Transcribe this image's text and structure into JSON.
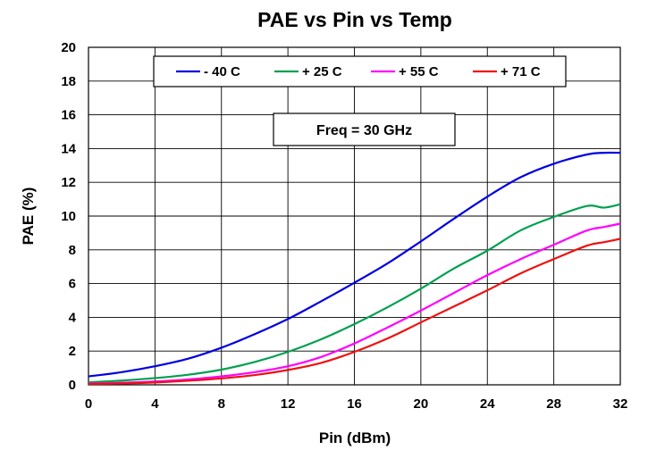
{
  "chart_data": {
    "type": "line",
    "title": "PAE vs Pin vs Temp",
    "xlabel": "Pin (dBm)",
    "ylabel": "PAE (%)",
    "xlim": [
      0,
      32
    ],
    "ylim": [
      0,
      20
    ],
    "xticks": [
      "0",
      "4",
      "8",
      "12",
      "16",
      "20",
      "24",
      "28",
      "32"
    ],
    "yticks": [
      "0",
      "2",
      "4",
      "6",
      "8",
      "10",
      "12",
      "14",
      "16",
      "18",
      "20"
    ],
    "grid": true,
    "legend_position": "top",
    "annotation": "Freq = 30 GHz",
    "x": [
      0,
      2,
      4,
      6,
      8,
      10,
      12,
      14,
      16,
      18,
      20,
      22,
      24,
      26,
      28,
      30,
      31,
      32
    ],
    "series": [
      {
        "name": "- 40 C",
        "color": "#0000e0",
        "values": [
          0.5,
          0.75,
          1.1,
          1.55,
          2.2,
          3.0,
          3.9,
          4.95,
          6.05,
          7.2,
          8.5,
          9.85,
          11.15,
          12.3,
          13.1,
          13.65,
          13.75,
          13.75
        ]
      },
      {
        "name": "+ 25 C",
        "color": "#00a050",
        "values": [
          0.15,
          0.25,
          0.4,
          0.6,
          0.9,
          1.35,
          1.95,
          2.7,
          3.6,
          4.6,
          5.7,
          6.9,
          7.95,
          9.15,
          9.95,
          10.6,
          10.5,
          10.7
        ]
      },
      {
        "name": "+ 55 C",
        "color": "#ff00ff",
        "values": [
          0.08,
          0.12,
          0.2,
          0.32,
          0.5,
          0.75,
          1.1,
          1.65,
          2.45,
          3.4,
          4.4,
          5.45,
          6.5,
          7.45,
          8.3,
          9.15,
          9.35,
          9.55
        ]
      },
      {
        "name": "+ 71 C",
        "color": "#ee1111",
        "values": [
          0.05,
          0.08,
          0.14,
          0.24,
          0.38,
          0.58,
          0.88,
          1.3,
          1.95,
          2.75,
          3.7,
          4.65,
          5.6,
          6.6,
          7.45,
          8.25,
          8.45,
          8.65
        ]
      }
    ]
  }
}
